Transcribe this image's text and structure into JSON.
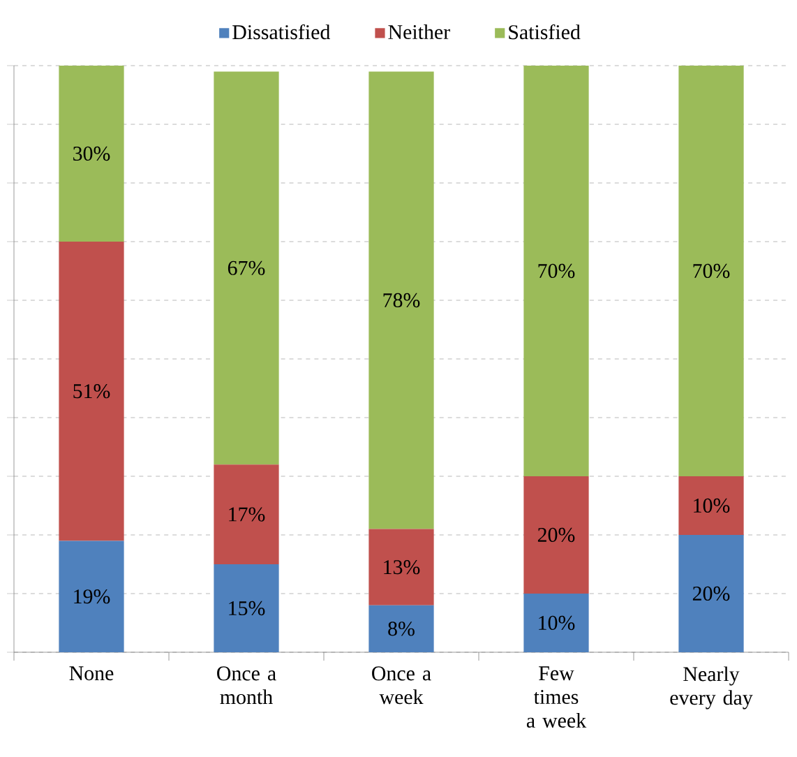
{
  "chart_data": {
    "type": "bar",
    "stacked": true,
    "categories": [
      "None",
      "Once a month",
      "Once a week",
      "Few times a week",
      "Nearly every day"
    ],
    "series": [
      {
        "name": "Dissatisfied",
        "color": "#4f81bd",
        "values": [
          19,
          15,
          8,
          10,
          20
        ],
        "value_labels": [
          "19%",
          "15%",
          "8%",
          "10%",
          "20%"
        ]
      },
      {
        "name": "Neither",
        "color": "#c0504d",
        "values": [
          51,
          17,
          13,
          20,
          10
        ],
        "value_labels": [
          "51%",
          "17%",
          "13%",
          "20%",
          "10%"
        ]
      },
      {
        "name": "Satisfied",
        "color": "#9bbb59",
        "values": [
          30,
          67,
          78,
          70,
          70
        ],
        "value_labels": [
          "30%",
          "67%",
          "78%",
          "70%",
          "70%"
        ]
      }
    ],
    "grid": "y",
    "legend": "top",
    "tick_labels": "x"
  }
}
